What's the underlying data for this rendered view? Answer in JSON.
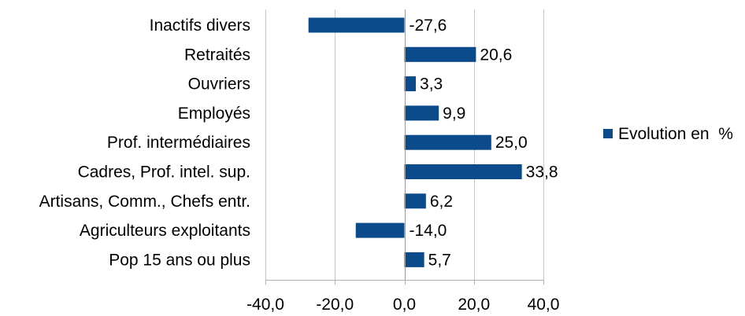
{
  "chart_data": {
    "type": "bar",
    "orientation": "horizontal",
    "categories": [
      "Inactifs divers",
      "Retraités",
      "Ouvriers",
      "Employés",
      "Prof. intermédiaires",
      "Cadres, Prof. intel. sup.",
      "Artisans, Comm., Chefs entr.",
      "Agriculteurs exploitants",
      "Pop 15 ans ou plus"
    ],
    "series": [
      {
        "name": "Evolution en  %",
        "values": [
          -27.6,
          20.6,
          3.3,
          9.9,
          25.0,
          33.8,
          6.2,
          -14.0,
          5.7
        ],
        "value_labels": [
          "-27,6",
          "20,6",
          "3,3",
          "9,9",
          "25,0",
          "33,8",
          "6,2",
          "-14,0",
          "5,7"
        ],
        "color": "#0b4a8b"
      }
    ],
    "xlim": [
      -40,
      40
    ],
    "xticks": [
      -40,
      -20,
      0,
      20,
      40
    ],
    "xtick_labels": [
      "-40,0",
      "-20,0",
      "0,0",
      "20,0",
      "40,0"
    ],
    "grid": "vertical",
    "legend_position": "right"
  }
}
